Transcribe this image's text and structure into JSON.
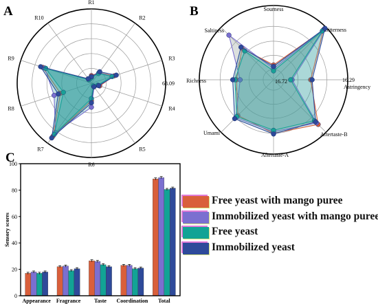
{
  "panels": {
    "a": "A",
    "b": "B",
    "c": "C"
  },
  "radar_a": {
    "axes": [
      "R1",
      "R2",
      "R3",
      "R4",
      "R5",
      "R6",
      "R7",
      "R8",
      "R9",
      "R10"
    ],
    "max_label": "68.09"
  },
  "radar_b": {
    "axes": [
      "Sourness",
      "Bitterness",
      "Astringency",
      "Aftertaste-B",
      "Aftertaste-A",
      "Umami",
      "Richness",
      "Saltiness"
    ],
    "max_label": "16.29",
    "min_label": "16.72"
  },
  "bar_legend": {
    "items": [
      "Free yeast with mango puree",
      "Immobilized yeast with mango puree",
      "Free yeast",
      "Immobilized yeast"
    ]
  },
  "colors": {
    "s1": "#d95f3b",
    "s2": "#7b6fd0",
    "s3": "#12a395",
    "s4": "#2e4a9a",
    "radar_fill": "#2a9a9a"
  },
  "chart_data": [
    {
      "type": "radar",
      "panel": "A",
      "axes": [
        "R1",
        "R2",
        "R3",
        "R4",
        "R5",
        "R6",
        "R7",
        "R8",
        "R9",
        "R10"
      ],
      "r_max": 68.09,
      "series": [
        {
          "values": [
            7,
            12,
            22,
            8,
            4,
            16,
            60,
            30,
            47,
            5
          ]
        },
        {
          "values": [
            6,
            12,
            20,
            7,
            4,
            22,
            56,
            36,
            45,
            4
          ]
        },
        {
          "values": [
            5,
            11,
            20,
            6,
            3,
            14,
            58,
            27,
            44,
            4
          ]
        },
        {
          "values": [
            6,
            13,
            24,
            7,
            4,
            18,
            62,
            32,
            49,
            5
          ]
        }
      ]
    },
    {
      "type": "radar",
      "panel": "B",
      "axes": [
        "Sourness",
        "Bitterness",
        "Astringency",
        "Aftertaste-B",
        "Aftertaste-A",
        "Umami",
        "Richness",
        "Saltiness"
      ],
      "series": [
        {
          "values": [
            0.2,
            0.95,
            0.5,
            0.85,
            0.72,
            0.68,
            0.5,
            0.6
          ]
        },
        {
          "values": [
            0.15,
            0.97,
            0.25,
            0.82,
            0.7,
            0.72,
            0.45,
            0.85
          ]
        },
        {
          "values": [
            0.12,
            0.93,
            0.23,
            0.78,
            0.68,
            0.7,
            0.52,
            0.55
          ]
        },
        {
          "values": [
            0.18,
            0.98,
            0.52,
            0.8,
            0.73,
            0.74,
            0.55,
            0.62
          ]
        }
      ]
    },
    {
      "type": "bar",
      "panel": "C",
      "categories": [
        "Appearance",
        "Fragrance",
        "Taste",
        "Coordination",
        "Total"
      ],
      "ylabel": "Sensory scores",
      "ylim": [
        0,
        100
      ],
      "yticks": [
        0,
        20,
        40,
        60,
        80,
        100
      ],
      "series": [
        {
          "name": "Free yeast with mango puree",
          "values": [
            17,
            22,
            26.5,
            23,
            88.5
          ]
        },
        {
          "name": "Immobilized yeast with mango puree",
          "values": [
            18,
            22.5,
            26,
            23,
            89.5
          ]
        },
        {
          "name": "Free yeast",
          "values": [
            17,
            19,
            23.5,
            20.5,
            80.5
          ]
        },
        {
          "name": "Immobilized yeast",
          "values": [
            18,
            20.5,
            22,
            21,
            81.5
          ]
        }
      ]
    }
  ]
}
